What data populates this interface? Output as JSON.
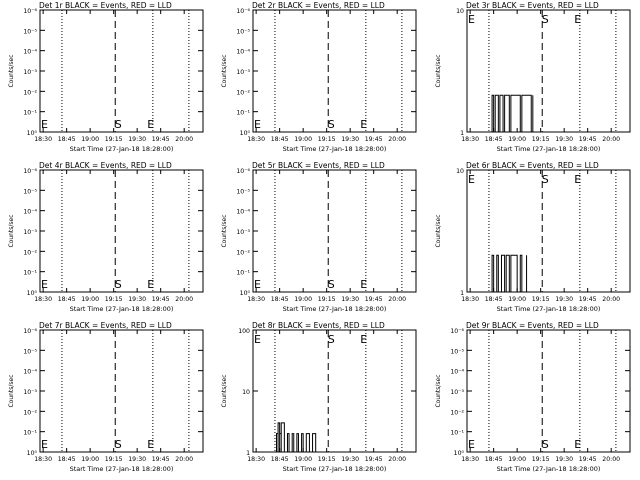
{
  "figure": {
    "background": "#ffffff",
    "foreground": "#000000",
    "series_color": "#000000"
  },
  "chart_data": [
    {
      "type": "line",
      "title": "Det 1r BLACK = Events, RED = LLD",
      "xlabel": "Start Time (27-Jan-18 18:28:00)",
      "ylabel": "Counts/sec",
      "yscale": "log",
      "ytick_labels": [
        "10⁰",
        "10⁻¹",
        "10⁻²",
        "10⁻³",
        "10⁻⁴",
        "10⁻⁵",
        "10⁻⁶"
      ],
      "xticks": [
        "18:30",
        "18:45",
        "19:00",
        "19:15",
        "19:30",
        "19:45",
        "20:00"
      ],
      "markers": [
        {
          "label": "E",
          "time": "18:30",
          "y": "bottom"
        },
        {
          "label": "S",
          "time": "19:16",
          "y": "bottom"
        },
        {
          "label": "E",
          "time": "19:38",
          "y": "bottom"
        }
      ],
      "dotted_times": [
        "18:42",
        "19:40",
        "20:03"
      ],
      "dashed_times": [
        "19:16"
      ],
      "series": []
    },
    {
      "type": "line",
      "title": "Det 2r BLACK = Events, RED = LLD",
      "xlabel": "Start Time (27-Jan-18 18:28:00)",
      "ylabel": "Counts/sec",
      "yscale": "log",
      "ytick_labels": [
        "10⁰",
        "10⁻¹",
        "10⁻²",
        "10⁻³",
        "10⁻⁴",
        "10⁻⁵",
        "10⁻⁶"
      ],
      "xticks": [
        "18:30",
        "18:45",
        "19:00",
        "19:15",
        "19:30",
        "19:45",
        "20:00"
      ],
      "markers": [
        {
          "label": "E",
          "time": "18:30",
          "y": "bottom"
        },
        {
          "label": "S",
          "time": "19:16",
          "y": "bottom"
        },
        {
          "label": "E",
          "time": "19:38",
          "y": "bottom"
        }
      ],
      "dotted_times": [
        "18:42",
        "19:40",
        "20:03"
      ],
      "dashed_times": [
        "19:16"
      ],
      "series": []
    },
    {
      "type": "line",
      "title": "Det 3r BLACK = Events, RED = LLD",
      "xlabel": "Start Time (27-Jan-18 18:28:00)",
      "ylabel": "Counts/sec",
      "yscale": "log",
      "ytick_labels": [
        "1",
        "10"
      ],
      "xticks": [
        "18:30",
        "18:45",
        "19:00",
        "19:15",
        "19:30",
        "19:45",
        "20:00"
      ],
      "markers": [
        {
          "label": "E",
          "time": "18:30",
          "y": "top"
        },
        {
          "label": "S",
          "time": "19:16",
          "y": "top"
        },
        {
          "label": "E",
          "time": "19:38",
          "y": "top"
        }
      ],
      "dotted_times": [
        "18:42",
        "19:40",
        "20:03"
      ],
      "dashed_times": [
        "19:16"
      ],
      "series": [
        {
          "color": "#000000",
          "x": [
            "18:42",
            "18:44",
            "18:45",
            "18:46",
            "18:48",
            "18:49",
            "18:51",
            "18:52",
            "18:55",
            "18:56",
            "19:02",
            "19:03",
            "19:09",
            "19:10"
          ],
          "values": [
            1,
            2,
            1,
            2,
            1,
            2,
            1,
            2,
            1,
            2,
            1,
            2,
            1,
            2
          ]
        }
      ]
    },
    {
      "type": "line",
      "title": "Det 4r BLACK = Events, RED = LLD",
      "xlabel": "Start Time (27-Jan-18 18:28:00)",
      "ylabel": "Counts/sec",
      "yscale": "log",
      "ytick_labels": [
        "10⁰",
        "10⁻¹",
        "10⁻²",
        "10⁻³",
        "10⁻⁴",
        "10⁻⁵",
        "10⁻⁶"
      ],
      "xticks": [
        "18:30",
        "18:45",
        "19:00",
        "19:15",
        "19:30",
        "19:45",
        "20:00"
      ],
      "markers": [
        {
          "label": "E",
          "time": "18:30",
          "y": "bottom"
        },
        {
          "label": "S",
          "time": "19:16",
          "y": "bottom"
        },
        {
          "label": "E",
          "time": "19:38",
          "y": "bottom"
        }
      ],
      "dotted_times": [
        "18:42",
        "19:40",
        "20:03"
      ],
      "dashed_times": [
        "19:16"
      ],
      "series": []
    },
    {
      "type": "line",
      "title": "Det 5r BLACK = Events, RED = LLD",
      "xlabel": "Start Time (27-Jan-18 18:28:00)",
      "ylabel": "Counts/sec",
      "yscale": "log",
      "ytick_labels": [
        "10⁰",
        "10⁻¹",
        "10⁻²",
        "10⁻³",
        "10⁻⁴",
        "10⁻⁵",
        "10⁻⁶"
      ],
      "xticks": [
        "18:30",
        "18:45",
        "19:00",
        "19:15",
        "19:30",
        "19:45",
        "20:00"
      ],
      "markers": [
        {
          "label": "E",
          "time": "18:30",
          "y": "bottom"
        },
        {
          "label": "S",
          "time": "19:16",
          "y": "bottom"
        },
        {
          "label": "E",
          "time": "19:38",
          "y": "bottom"
        }
      ],
      "dotted_times": [
        "18:42",
        "19:40",
        "20:03"
      ],
      "dashed_times": [
        "19:16"
      ],
      "series": []
    },
    {
      "type": "line",
      "title": "Det 6r BLACK = Events, RED = LLD",
      "xlabel": "Start Time (27-Jan-18 18:28:00)",
      "ylabel": "Counts/sec",
      "yscale": "log",
      "ytick_labels": [
        "1",
        "10"
      ],
      "xticks": [
        "18:30",
        "18:45",
        "19:00",
        "19:15",
        "19:30",
        "19:45",
        "20:00"
      ],
      "markers": [
        {
          "label": "E",
          "time": "18:30",
          "y": "top"
        },
        {
          "label": "S",
          "time": "19:16",
          "y": "top"
        },
        {
          "label": "E",
          "time": "19:38",
          "y": "top"
        }
      ],
      "dotted_times": [
        "18:42",
        "19:40",
        "20:03"
      ],
      "dashed_times": [
        "19:16"
      ],
      "series": [
        {
          "color": "#000000",
          "x": [
            "18:42",
            "18:44",
            "18:45",
            "18:47",
            "18:48",
            "18:50",
            "18:52",
            "18:53",
            "18:55",
            "18:56",
            "19:00",
            "19:02",
            "19:03",
            "19:06"
          ],
          "values": [
            1,
            2,
            1,
            2,
            1,
            2,
            1,
            2,
            1,
            2,
            1,
            2,
            1,
            2
          ]
        }
      ]
    },
    {
      "type": "line",
      "title": "Det 7r BLACK = Events, RED = LLD",
      "xlabel": "Start Time (27-Jan-18 18:28:00)",
      "ylabel": "Counts/sec",
      "yscale": "log",
      "ytick_labels": [
        "10⁰",
        "10⁻¹",
        "10⁻²",
        "10⁻³",
        "10⁻⁴",
        "10⁻⁵",
        "10⁻⁶"
      ],
      "xticks": [
        "18:30",
        "18:45",
        "19:00",
        "19:15",
        "19:30",
        "19:45",
        "20:00"
      ],
      "markers": [
        {
          "label": "E",
          "time": "18:30",
          "y": "bottom"
        },
        {
          "label": "S",
          "time": "19:16",
          "y": "bottom"
        },
        {
          "label": "E",
          "time": "19:38",
          "y": "bottom"
        }
      ],
      "dotted_times": [
        "18:42",
        "19:40",
        "20:03"
      ],
      "dashed_times": [
        "19:16"
      ],
      "series": []
    },
    {
      "type": "line",
      "title": "Det 8r BLACK = Events, RED = LLD",
      "xlabel": "Start Time (27-Jan-18 18:28:00)",
      "ylabel": "Counts/sec",
      "yscale": "log",
      "ytick_labels": [
        "1",
        "10",
        "100"
      ],
      "xticks": [
        "18:30",
        "18:45",
        "19:00",
        "19:15",
        "19:30",
        "19:45",
        "20:00"
      ],
      "markers": [
        {
          "label": "E",
          "time": "18:30",
          "y": "top"
        },
        {
          "label": "S",
          "time": "19:16",
          "y": "top"
        },
        {
          "label": "E",
          "time": "19:38",
          "y": "top"
        }
      ],
      "dotted_times": [
        "18:42",
        "19:40",
        "20:03"
      ],
      "dashed_times": [
        "19:16"
      ],
      "series": [
        {
          "color": "#000000",
          "x": [
            "18:42",
            "18:43",
            "18:44",
            "18:45",
            "18:46",
            "18:48",
            "18:50",
            "18:51",
            "18:53",
            "18:54",
            "18:56",
            "18:57",
            "18:59",
            "19:00",
            "19:02",
            "19:04",
            "19:06",
            "19:08"
          ],
          "values": [
            1,
            2,
            3,
            2,
            3,
            1,
            2,
            1,
            2,
            1,
            2,
            1,
            2,
            1,
            2,
            1,
            2,
            1
          ]
        }
      ]
    },
    {
      "type": "line",
      "title": "Det 9r BLACK = Events, RED = LLD",
      "xlabel": "Start Time (27-Jan-18 18:28:00)",
      "ylabel": "Counts/sec",
      "yscale": "log",
      "ytick_labels": [
        "10⁰",
        "10⁻¹",
        "10⁻²",
        "10⁻³",
        "10⁻⁴",
        "10⁻⁵",
        "10⁻⁶"
      ],
      "xticks": [
        "18:30",
        "18:45",
        "19:00",
        "19:15",
        "19:30",
        "19:45",
        "20:00"
      ],
      "markers": [
        {
          "label": "E",
          "time": "18:30",
          "y": "bottom"
        },
        {
          "label": "S",
          "time": "19:16",
          "y": "bottom"
        },
        {
          "label": "E",
          "time": "19:38",
          "y": "bottom"
        }
      ],
      "dotted_times": [
        "18:42",
        "19:40",
        "20:03"
      ],
      "dashed_times": [
        "19:16"
      ],
      "series": []
    }
  ]
}
